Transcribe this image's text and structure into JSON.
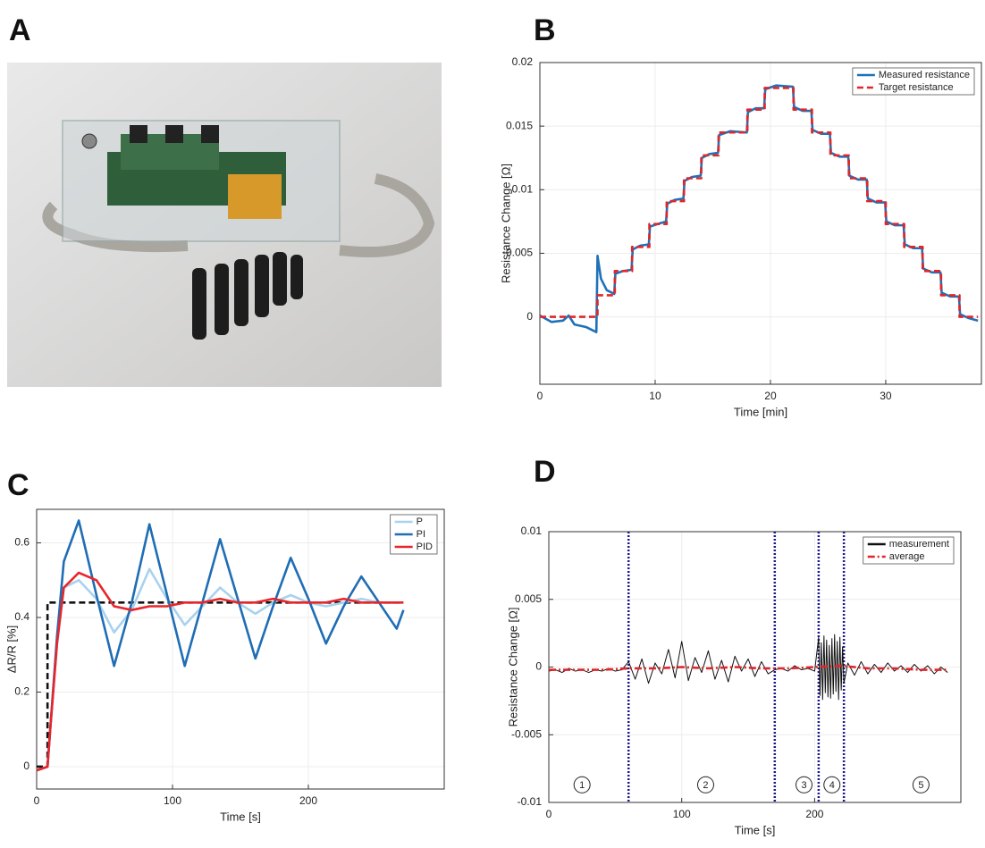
{
  "panel_labels": [
    "A",
    "B",
    "C",
    "D"
  ],
  "chart_data": [
    {
      "type": "line",
      "xlabel": "Time [min]",
      "ylabel": "Resistance Change [Ω]",
      "xlim": [
        0,
        38.3
      ],
      "ylim": [
        -0.0053,
        0.02
      ],
      "xticks": [
        0,
        10,
        20,
        30
      ],
      "yticks": [
        0,
        0.005,
        0.01,
        0.015,
        0.02
      ],
      "grid": true,
      "legend": "upper right",
      "series": [
        {
          "name": "Measured resistance",
          "color": "#1f72b8",
          "style": "solid",
          "x": [
            0,
            1,
            2,
            2.5,
            3,
            4,
            4.9,
            5.0,
            5.3,
            5.8,
            6.45,
            6.55,
            7.2,
            7.95,
            8.05,
            8.7,
            9.45,
            9.55,
            10.2,
            10.95,
            11.05,
            11.7,
            12.45,
            12.55,
            13.2,
            13.95,
            14.05,
            14.7,
            15.45,
            15.55,
            16.5,
            17.95,
            18.05,
            18.7,
            19.45,
            19.55,
            20.5,
            21.95,
            22.05,
            22.8,
            23.55,
            23.65,
            24.4,
            25.15,
            25.25,
            26,
            26.75,
            26.85,
            27.6,
            28.35,
            28.45,
            29.2,
            29.95,
            30.05,
            30.8,
            31.55,
            31.65,
            32.4,
            33.15,
            33.25,
            34,
            34.75,
            34.85,
            35.6,
            36.35,
            36.45,
            37.2,
            38
          ],
          "values": [
            0.0001,
            -0.0004,
            -0.0003,
            0.0001,
            -0.0006,
            -0.0008,
            -0.0012,
            0.0048,
            0.003,
            0.0021,
            0.0018,
            0.0034,
            0.0036,
            0.0037,
            0.0053,
            0.0056,
            0.0057,
            0.0071,
            0.0073,
            0.0075,
            0.0089,
            0.0092,
            0.0093,
            0.0107,
            0.011,
            0.0111,
            0.0125,
            0.0128,
            0.0129,
            0.0143,
            0.0146,
            0.0145,
            0.0161,
            0.0164,
            0.0164,
            0.0179,
            0.0182,
            0.0181,
            0.0165,
            0.0162,
            0.0162,
            0.0147,
            0.0144,
            0.0144,
            0.0129,
            0.0126,
            0.0126,
            0.0111,
            0.0108,
            0.0108,
            0.0093,
            0.009,
            0.009,
            0.0075,
            0.0072,
            0.0072,
            0.0057,
            0.0054,
            0.0054,
            0.0038,
            0.0035,
            0.0035,
            0.0019,
            0.0016,
            0.0016,
            0.0002,
            -0.0001,
            -0.0003
          ]
        },
        {
          "name": "Target resistance",
          "color": "#e0262a",
          "style": "dashed",
          "x": [
            0,
            5,
            5,
            6.5,
            6.5,
            8,
            8,
            9.5,
            9.5,
            11,
            11,
            12.5,
            12.5,
            14,
            14,
            15.5,
            15.5,
            18,
            18,
            19.5,
            19.5,
            22,
            22,
            23.6,
            23.6,
            25.2,
            25.2,
            26.8,
            26.8,
            28.4,
            28.4,
            30,
            30,
            31.6,
            31.6,
            33.2,
            33.2,
            34.8,
            34.8,
            36.4,
            36.4,
            38
          ],
          "values": [
            0,
            0,
            0.0017,
            0.0017,
            0.0036,
            0.0036,
            0.0055,
            0.0055,
            0.0073,
            0.0073,
            0.0091,
            0.0091,
            0.0109,
            0.0109,
            0.0127,
            0.0127,
            0.0145,
            0.0145,
            0.0163,
            0.0163,
            0.018,
            0.018,
            0.0163,
            0.0163,
            0.0145,
            0.0145,
            0.0127,
            0.0127,
            0.0109,
            0.0109,
            0.0091,
            0.0091,
            0.0073,
            0.0073,
            0.0055,
            0.0055,
            0.0036,
            0.0036,
            0.0017,
            0.0017,
            0,
            0
          ]
        }
      ]
    },
    {
      "type": "line",
      "xlabel": "Time [s]",
      "ylabel": "ΔR/R [%]",
      "xlim": [
        0,
        300
      ],
      "ylim": [
        -0.06,
        0.69
      ],
      "xticks": [
        0,
        100,
        200
      ],
      "yticks": [
        0,
        0.2,
        0.4,
        0.6
      ],
      "grid": true,
      "legend": "upper right",
      "x": [
        0,
        8,
        10,
        15,
        20,
        31,
        44,
        57,
        70,
        83,
        96,
        109,
        122,
        135,
        148,
        161,
        174,
        187,
        200,
        213,
        226,
        239,
        252,
        265,
        270
      ],
      "series": [
        {
          "color": "#111111",
          "style": "dashed",
          "x": [
            0,
            8,
            8,
            270
          ],
          "values": [
            0,
            0,
            0.44,
            0.44
          ]
        },
        {
          "name": "P",
          "color": "#a8d2ee",
          "style": "solid",
          "values": [
            -0.01,
            0,
            0.1,
            0.33,
            0.48,
            0.5,
            0.45,
            0.36,
            0.42,
            0.53,
            0.45,
            0.38,
            0.43,
            0.48,
            0.44,
            0.41,
            0.44,
            0.46,
            0.44,
            0.43,
            0.44,
            0.45,
            0.44,
            0.44,
            0.44
          ]
        },
        {
          "name": "PI",
          "color": "#1f6db5",
          "style": "solid",
          "values": [
            -0.01,
            0,
            0.1,
            0.35,
            0.55,
            0.66,
            0.46,
            0.27,
            0.44,
            0.65,
            0.46,
            0.27,
            0.44,
            0.61,
            0.45,
            0.29,
            0.43,
            0.56,
            0.45,
            0.33,
            0.43,
            0.51,
            0.44,
            0.37,
            0.42
          ]
        },
        {
          "name": "PID",
          "color": "#e8262a",
          "style": "solid",
          "values": [
            -0.01,
            0,
            0.1,
            0.33,
            0.48,
            0.52,
            0.5,
            0.43,
            0.42,
            0.43,
            0.43,
            0.44,
            0.44,
            0.45,
            0.44,
            0.44,
            0.45,
            0.44,
            0.44,
            0.44,
            0.45,
            0.44,
            0.44,
            0.44,
            0.44
          ]
        }
      ]
    },
    {
      "type": "line",
      "xlabel": "Time [s]",
      "ylabel": "Resistance Change [Ω]",
      "xlim": [
        0,
        310
      ],
      "ylim": [
        -0.01,
        0.01
      ],
      "xticks": [
        0,
        100,
        200
      ],
      "yticks": [
        -0.01,
        -0.005,
        0,
        0.005,
        0.01
      ],
      "grid": true,
      "legend": "upper right",
      "vlines": [
        60,
        170,
        203,
        222
      ],
      "vline_color": "#1a1a8c",
      "annotations": [
        {
          "text": "1",
          "x": 25,
          "y": -0.0087
        },
        {
          "text": "2",
          "x": 118,
          "y": -0.0087
        },
        {
          "text": "3",
          "x": 192,
          "y": -0.0087
        },
        {
          "text": "4",
          "x": 213,
          "y": -0.0087
        },
        {
          "text": "5",
          "x": 280,
          "y": -0.0087
        }
      ],
      "series": [
        {
          "name": "measurement",
          "color": "#111111",
          "style": "solid",
          "x": [
            0,
            5,
            10,
            15,
            20,
            25,
            30,
            35,
            40,
            45,
            50,
            55,
            60,
            65,
            70,
            75,
            80,
            85,
            90,
            95,
            100,
            105,
            110,
            115,
            120,
            125,
            130,
            135,
            140,
            145,
            150,
            155,
            160,
            165,
            170,
            175,
            180,
            185,
            190,
            195,
            200,
            203,
            204,
            205,
            206,
            207,
            208,
            209,
            210,
            211,
            212,
            213,
            214,
            215,
            216,
            217,
            218,
            219,
            220,
            221,
            222,
            225,
            230,
            235,
            240,
            245,
            250,
            255,
            260,
            265,
            270,
            275,
            280,
            285,
            290,
            295,
            300
          ],
          "values": [
            -0.0003,
            -0.0002,
            -0.0004,
            -0.0001,
            -0.0003,
            -0.0002,
            -0.0004,
            -0.0002,
            -0.0003,
            -0.0001,
            -0.0003,
            -0.0002,
            0.0004,
            -0.0009,
            0.0006,
            -0.0012,
            0.0003,
            -0.0005,
            0.0013,
            -0.0008,
            0.0019,
            -0.001,
            0.0007,
            -0.0004,
            0.0012,
            -0.0009,
            0.0005,
            -0.0011,
            0.0008,
            -0.0003,
            0.0006,
            -0.0007,
            0.0004,
            -0.0005,
            -0.0002,
            -0.0001,
            -0.0003,
            0.0001,
            -0.0002,
            -0.0001,
            -0.0003,
            0.0022,
            -0.0021,
            0.0018,
            -0.0024,
            0.0023,
            -0.0019,
            0.002,
            -0.0022,
            0.0016,
            -0.0023,
            0.0021,
            -0.002,
            0.0024,
            -0.0018,
            0.0019,
            -0.0024,
            0.0022,
            -0.0017,
            0.0015,
            -0.0012,
            0.0003,
            -0.0006,
            0.0004,
            -0.0005,
            0.0002,
            -0.0004,
            0.0003,
            -0.0003,
            0.0001,
            -0.0004,
            0.0002,
            -0.0003,
            0.0001,
            -0.0005,
            0,
            -0.0004
          ]
        },
        {
          "name": "average",
          "color": "#e0262a",
          "style": "dashdot",
          "x": [
            0,
            20,
            40,
            60,
            80,
            100,
            120,
            140,
            160,
            180,
            200,
            220,
            240,
            260,
            280,
            300
          ],
          "values": [
            -0.0002,
            -0.0002,
            -0.0002,
            -0.0001,
            -0.0001,
            0,
            -0.0001,
            0,
            -0.0001,
            -0.0001,
            0,
            0.0001,
            -0.0001,
            -0.0001,
            -0.0002,
            -0.0002
          ]
        }
      ]
    }
  ]
}
